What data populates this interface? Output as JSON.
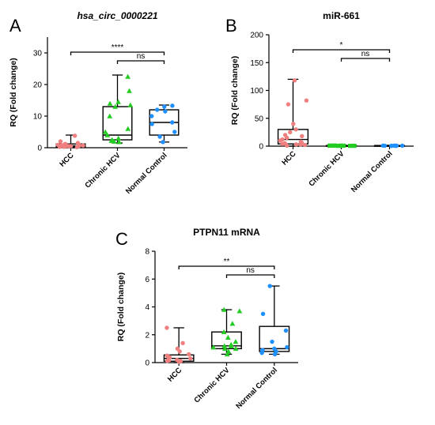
{
  "chart_data": [
    {
      "panel": "A",
      "type": "box",
      "title": "hsa_circ_0000221",
      "title_italic": true,
      "ylabel": "RQ (Fold change)",
      "ylim": [
        0,
        35
      ],
      "yticks": [
        0,
        10,
        20,
        30
      ],
      "categories": [
        "HCC",
        "Chronic HCV",
        "Normal Control"
      ],
      "colors": [
        "#f08080",
        "#22cc22",
        "#1e90ff"
      ],
      "markers": [
        "circle",
        "triangle",
        "circle"
      ],
      "boxes": [
        {
          "min": 0,
          "q1": 0.3,
          "median": 0.6,
          "q3": 1.2,
          "max": 4
        },
        {
          "min": 1.5,
          "q1": 2.5,
          "median": 4,
          "q3": 13,
          "max": 23
        },
        {
          "min": 1.8,
          "q1": 4,
          "median": 8,
          "q3": 12,
          "max": 13.5
        }
      ],
      "points": [
        [
          0.2,
          0.3,
          0.5,
          0.6,
          0.8,
          1.0,
          0.4,
          0.7,
          1.2,
          1.5,
          0.9,
          0.3,
          3.8,
          0.5,
          2.0,
          0.6
        ],
        [
          1.8,
          2.0,
          2.5,
          3.0,
          4.0,
          5.0,
          6.0,
          10.0,
          13.0,
          13.5,
          14.0,
          14.5,
          18.0,
          22.5,
          2.2
        ],
        [
          1.8,
          3.5,
          5.0,
          7.5,
          8.0,
          10.0,
          11.5,
          12.0,
          13.0,
          13.3
        ]
      ],
      "comparisons": [
        {
          "from": 0,
          "to": 2,
          "label": "****"
        },
        {
          "from": 1,
          "to": 2,
          "label": "ns"
        }
      ]
    },
    {
      "panel": "B",
      "type": "box",
      "title": "miR-661",
      "title_italic": false,
      "ylabel": "RQ (Fold change)",
      "ylim": [
        0,
        200
      ],
      "yticks": [
        0,
        50,
        100,
        150,
        200
      ],
      "categories": [
        "HCC",
        "Chronic HCV",
        "Normal Control"
      ],
      "colors": [
        "#f08080",
        "#22cc22",
        "#1e90ff"
      ],
      "markers": [
        "circle",
        "square",
        "circle"
      ],
      "boxes": [
        {
          "min": 0,
          "q1": 4,
          "median": 12,
          "q3": 30,
          "max": 120
        },
        {
          "min": 0,
          "q1": 0.3,
          "median": 0.7,
          "q3": 1.2,
          "max": 1.5
        },
        {
          "min": 0,
          "q1": 0.3,
          "median": 0.7,
          "q3": 1.2,
          "max": 1.5
        }
      ],
      "points": [
        [
          1,
          2,
          3,
          4,
          5,
          6,
          8,
          10,
          12,
          15,
          18,
          20,
          25,
          30,
          40,
          75,
          82,
          118,
          5,
          3
        ],
        [
          0.5,
          0.6,
          0.7,
          0.8,
          0.9,
          1.0,
          0.5,
          0.7,
          0.9,
          1.0,
          0.6,
          0.8,
          0.7,
          0.9
        ],
        [
          0.5,
          0.6,
          0.7,
          0.8,
          0.9,
          1.0,
          0.6,
          0.7,
          0.8,
          0.9
        ]
      ],
      "comparisons": [
        {
          "from": 0,
          "to": 2,
          "label": "*"
        },
        {
          "from": 1,
          "to": 2,
          "label": "ns"
        }
      ]
    },
    {
      "panel": "C",
      "type": "box",
      "title": "PTPN11 mRNA",
      "title_italic": false,
      "ylabel": "RQ (Fold change)",
      "ylim": [
        0,
        8
      ],
      "yticks": [
        0,
        2,
        4,
        6,
        8
      ],
      "categories": [
        "HCC",
        "Chronic HCV",
        "Normal Control"
      ],
      "colors": [
        "#f08080",
        "#22cc22",
        "#1e90ff"
      ],
      "markers": [
        "circle",
        "triangle",
        "circle"
      ],
      "boxes": [
        {
          "min": 0,
          "q1": 0.1,
          "median": 0.3,
          "q3": 0.55,
          "max": 2.5
        },
        {
          "min": 0.6,
          "q1": 1.0,
          "median": 1.2,
          "q3": 2.2,
          "max": 3.8
        },
        {
          "min": 0.6,
          "q1": 0.8,
          "median": 1.0,
          "q3": 2.6,
          "max": 5.5
        }
      ],
      "points": [
        [
          0.05,
          0.1,
          0.15,
          0.2,
          0.3,
          0.4,
          0.5,
          0.6,
          0.8,
          1.0,
          1.4,
          2.5,
          0.25,
          0.35,
          0.12
        ],
        [
          0.6,
          0.8,
          1.0,
          1.1,
          1.2,
          1.3,
          1.5,
          1.8,
          2.2,
          2.8,
          3.7,
          3.8,
          1.0,
          1.2
        ],
        [
          0.6,
          0.8,
          0.9,
          1.0,
          1.1,
          1.5,
          2.3,
          3.5,
          5.5,
          0.7
        ]
      ],
      "comparisons": [
        {
          "from": 0,
          "to": 2,
          "label": "**"
        },
        {
          "from": 1,
          "to": 2,
          "label": "ns"
        }
      ]
    }
  ]
}
